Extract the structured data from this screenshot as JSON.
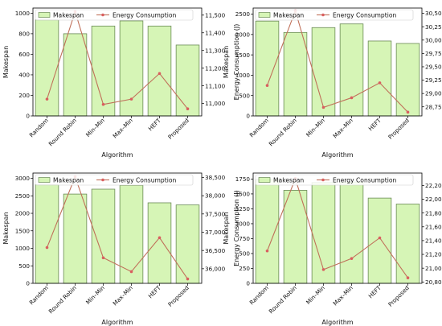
{
  "colors": {
    "bar_fill": "#d6f5b6",
    "bar_edge": "#6a8a55",
    "line": "#c0705a",
    "marker": "#d95f5f",
    "axis": "#000000"
  },
  "chart_data": [
    {
      "type": "bar+line",
      "categories": [
        "Random",
        "Round Robin",
        "Min–Min",
        "Max–Min",
        "HEFT",
        "Proposed"
      ],
      "xlabel": "Algorithm",
      "ylabel": "Makespan",
      "y2label": "Energy Consumption (J)",
      "ylim": [
        0,
        1050
      ],
      "y2lim": [
        10930,
        11540
      ],
      "yticks": [
        0,
        200,
        400,
        600,
        800,
        1000
      ],
      "y2ticks": [
        11000,
        11100,
        11200,
        11300,
        11400,
        11500
      ],
      "grid": false,
      "legend_placement": "top",
      "series": [
        {
          "name": "Makespan",
          "kind": "bar",
          "axis": "left",
          "values": [
            935,
            800,
            875,
            925,
            875,
            690
          ]
        },
        {
          "name": "Energy Consumption",
          "kind": "line",
          "axis": "right",
          "values": [
            11025,
            11520,
            10995,
            11025,
            11170,
            10970
          ]
        }
      ]
    },
    {
      "type": "bar+line",
      "categories": [
        "Random",
        "Round Robin",
        "Min–Min",
        "Max–Min",
        "HEFT",
        "Proposed"
      ],
      "xlabel": "Algorithm",
      "ylabel": "Makespan",
      "y2label": "Energy Consumption (J)",
      "ylim": [
        0,
        2650
      ],
      "y2lim": [
        28580,
        30600
      ],
      "yticks": [
        0,
        500,
        1000,
        1500,
        2000,
        2500
      ],
      "y2ticks": [
        28750,
        29000,
        29250,
        29500,
        29750,
        30000,
        30250,
        30500
      ],
      "grid": false,
      "legend_placement": "top",
      "series": [
        {
          "name": "Makespan",
          "kind": "bar",
          "axis": "left",
          "values": [
            2330,
            2050,
            2170,
            2260,
            1840,
            1780
          ]
        },
        {
          "name": "Energy Consumption",
          "kind": "line",
          "axis": "right",
          "values": [
            29150,
            30550,
            28740,
            28920,
            29200,
            28650
          ]
        }
      ]
    },
    {
      "type": "bar+line",
      "categories": [
        "Random",
        "Round Robin",
        "Min–Min",
        "Max–Min",
        "HEFT",
        "Proposed"
      ],
      "xlabel": "Algorithm",
      "ylabel": "Makespan",
      "y2label": "Energy Consumption (J)",
      "ylim": [
        0,
        3150
      ],
      "y2lim": [
        35600,
        38620
      ],
      "yticks": [
        0,
        500,
        1000,
        1500,
        2000,
        2500,
        3000
      ],
      "y2ticks": [
        36000,
        36500,
        37000,
        37500,
        38000,
        38500
      ],
      "grid": false,
      "legend_placement": "top",
      "series": [
        {
          "name": "Makespan",
          "kind": "bar",
          "axis": "left",
          "values": [
            2820,
            2550,
            2690,
            2800,
            2300,
            2240
          ]
        },
        {
          "name": "Energy Consumption",
          "kind": "line",
          "axis": "right",
          "values": [
            36580,
            38520,
            36300,
            35920,
            36850,
            35720
          ]
        }
      ]
    },
    {
      "type": "bar+line",
      "categories": [
        "Random",
        "Round Robin",
        "Min–Min",
        "Max–Min",
        "HEFT",
        "Proposed"
      ],
      "xlabel": "Algorithm",
      "ylabel": "Makespan",
      "y2label": "Energy Consumption (J)",
      "ylim": [
        0,
        1850
      ],
      "y2lim": [
        20780,
        22380
      ],
      "yticks": [
        0,
        250,
        500,
        750,
        1000,
        1250,
        1500,
        1750
      ],
      "y2ticks": [
        20800,
        21000,
        21200,
        21400,
        21600,
        21800,
        22000,
        22200
      ],
      "grid": false,
      "legend_placement": "top",
      "series": [
        {
          "name": "Makespan",
          "kind": "bar",
          "axis": "left",
          "values": [
            1740,
            1560,
            1690,
            1700,
            1430,
            1330
          ]
        },
        {
          "name": "Energy Consumption",
          "kind": "line",
          "axis": "right",
          "values": [
            21250,
            22300,
            20980,
            21140,
            21440,
            20860
          ]
        }
      ]
    }
  ]
}
